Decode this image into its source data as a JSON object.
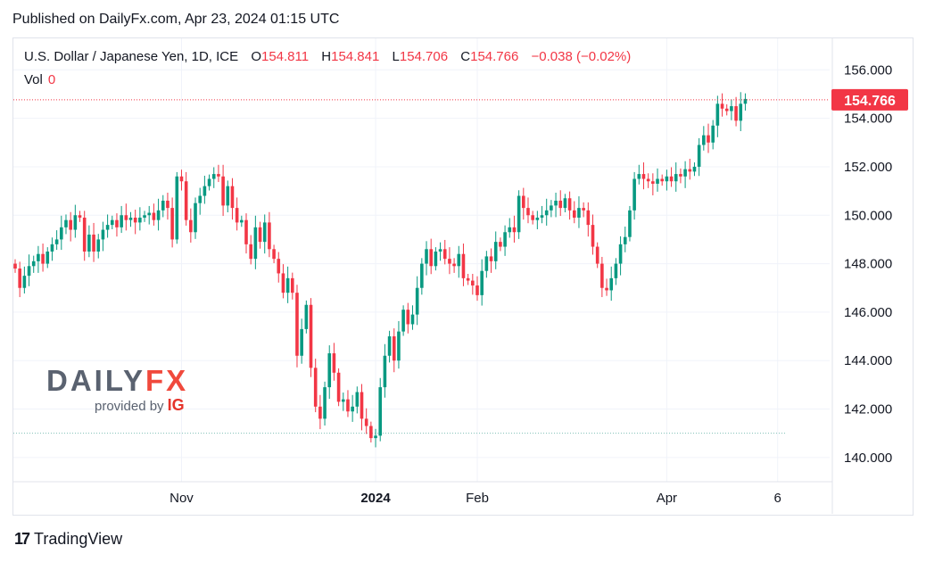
{
  "header": {
    "published": "Published on DailyFx.com, Apr 23, 2024 01:15 UTC"
  },
  "legend": {
    "symbol": "U.S. Dollar / Japanese Yen, 1D, ICE",
    "o_label": "O",
    "o_value": "154.811",
    "h_label": "H",
    "h_value": "154.841",
    "l_label": "L",
    "l_value": "154.706",
    "c_label": "C",
    "c_value": "154.766",
    "change": "−0.038 (−0.02%)",
    "vol_label": "Vol",
    "vol_value": "0"
  },
  "logo": {
    "dfx_a": "DAILY",
    "dfx_b": "FX",
    "provided": "provided by",
    "ig": "IG"
  },
  "footer": {
    "brand": "TradingView"
  },
  "colors": {
    "up": "#089981",
    "down": "#f23645",
    "grid": "#f0f3fa",
    "text": "#131722"
  },
  "chart_data": {
    "type": "candlestick",
    "title": "U.S. Dollar / Japanese Yen, 1D, ICE",
    "ylim": [
      139,
      157.3
    ],
    "yticks": [
      140,
      142,
      144,
      146,
      148,
      150,
      152,
      154,
      156
    ],
    "ytick_labels": [
      "140.000",
      "142.000",
      "144.000",
      "146.000",
      "148.000",
      "150.000",
      "152.000",
      "154.000",
      "156.000"
    ],
    "xticks": [
      {
        "index": 36,
        "label": "Nov",
        "bold": false
      },
      {
        "index": 78,
        "label": "2024",
        "bold": true
      },
      {
        "index": 100,
        "label": "Feb",
        "bold": false
      },
      {
        "index": 141,
        "label": "Apr",
        "bold": false
      },
      {
        "index": 165,
        "label": "6",
        "bold": false
      }
    ],
    "last_price": 154.766,
    "last_price_label": "154.766",
    "reference_line": 141.0,
    "closes": [
      147.8,
      147.0,
      147.5,
      147.9,
      148.1,
      148.4,
      148.0,
      148.5,
      148.8,
      149.0,
      149.5,
      149.8,
      149.4,
      150.0,
      149.9,
      148.5,
      149.2,
      148.5,
      149.0,
      149.4,
      149.6,
      149.8,
      149.5,
      150.0,
      149.8,
      149.9,
      149.7,
      149.9,
      150.0,
      150.1,
      149.8,
      150.2,
      150.6,
      150.3,
      149.0,
      151.6,
      151.4,
      149.8,
      149.3,
      150.5,
      150.8,
      151.2,
      151.5,
      151.7,
      151.6,
      150.4,
      151.2,
      150.3,
      149.7,
      149.8,
      148.8,
      148.2,
      149.5,
      148.9,
      149.7,
      148.6,
      148.2,
      147.6,
      146.8,
      147.4,
      146.8,
      144.2,
      145.3,
      146.3,
      143.7,
      142.1,
      141.6,
      142.9,
      144.3,
      143.5,
      142.3,
      142.4,
      141.9,
      142.1,
      142.7,
      141.6,
      141.3,
      140.8,
      140.9,
      142.9,
      144.2,
      145.0,
      144.0,
      145.2,
      146.1,
      145.5,
      145.9,
      147.0,
      148.0,
      148.6,
      147.9,
      148.5,
      148.6,
      148.2,
      148.0,
      147.9,
      148.4,
      147.4,
      147.3,
      147.1,
      146.7,
      147.7,
      148.3,
      148.1,
      148.9,
      148.7,
      149.3,
      149.5,
      149.3,
      150.8,
      150.3,
      150.0,
      149.8,
      149.9,
      150.0,
      150.2,
      150.4,
      150.6,
      150.3,
      150.7,
      150.2,
      149.9,
      150.3,
      150.2,
      149.6,
      148.7,
      148.0,
      147.0,
      146.9,
      147.4,
      148.0,
      148.8,
      149.1,
      150.2,
      151.5,
      151.7,
      151.5,
      151.4,
      151.3,
      151.5,
      151.4,
      151.6,
      151.4,
      151.7,
      151.6,
      151.9,
      151.8,
      152.0,
      152.9,
      153.3,
      153.0,
      153.7,
      154.6,
      154.4,
      154.3,
      154.5,
      153.9,
      154.6,
      154.8
    ]
  }
}
